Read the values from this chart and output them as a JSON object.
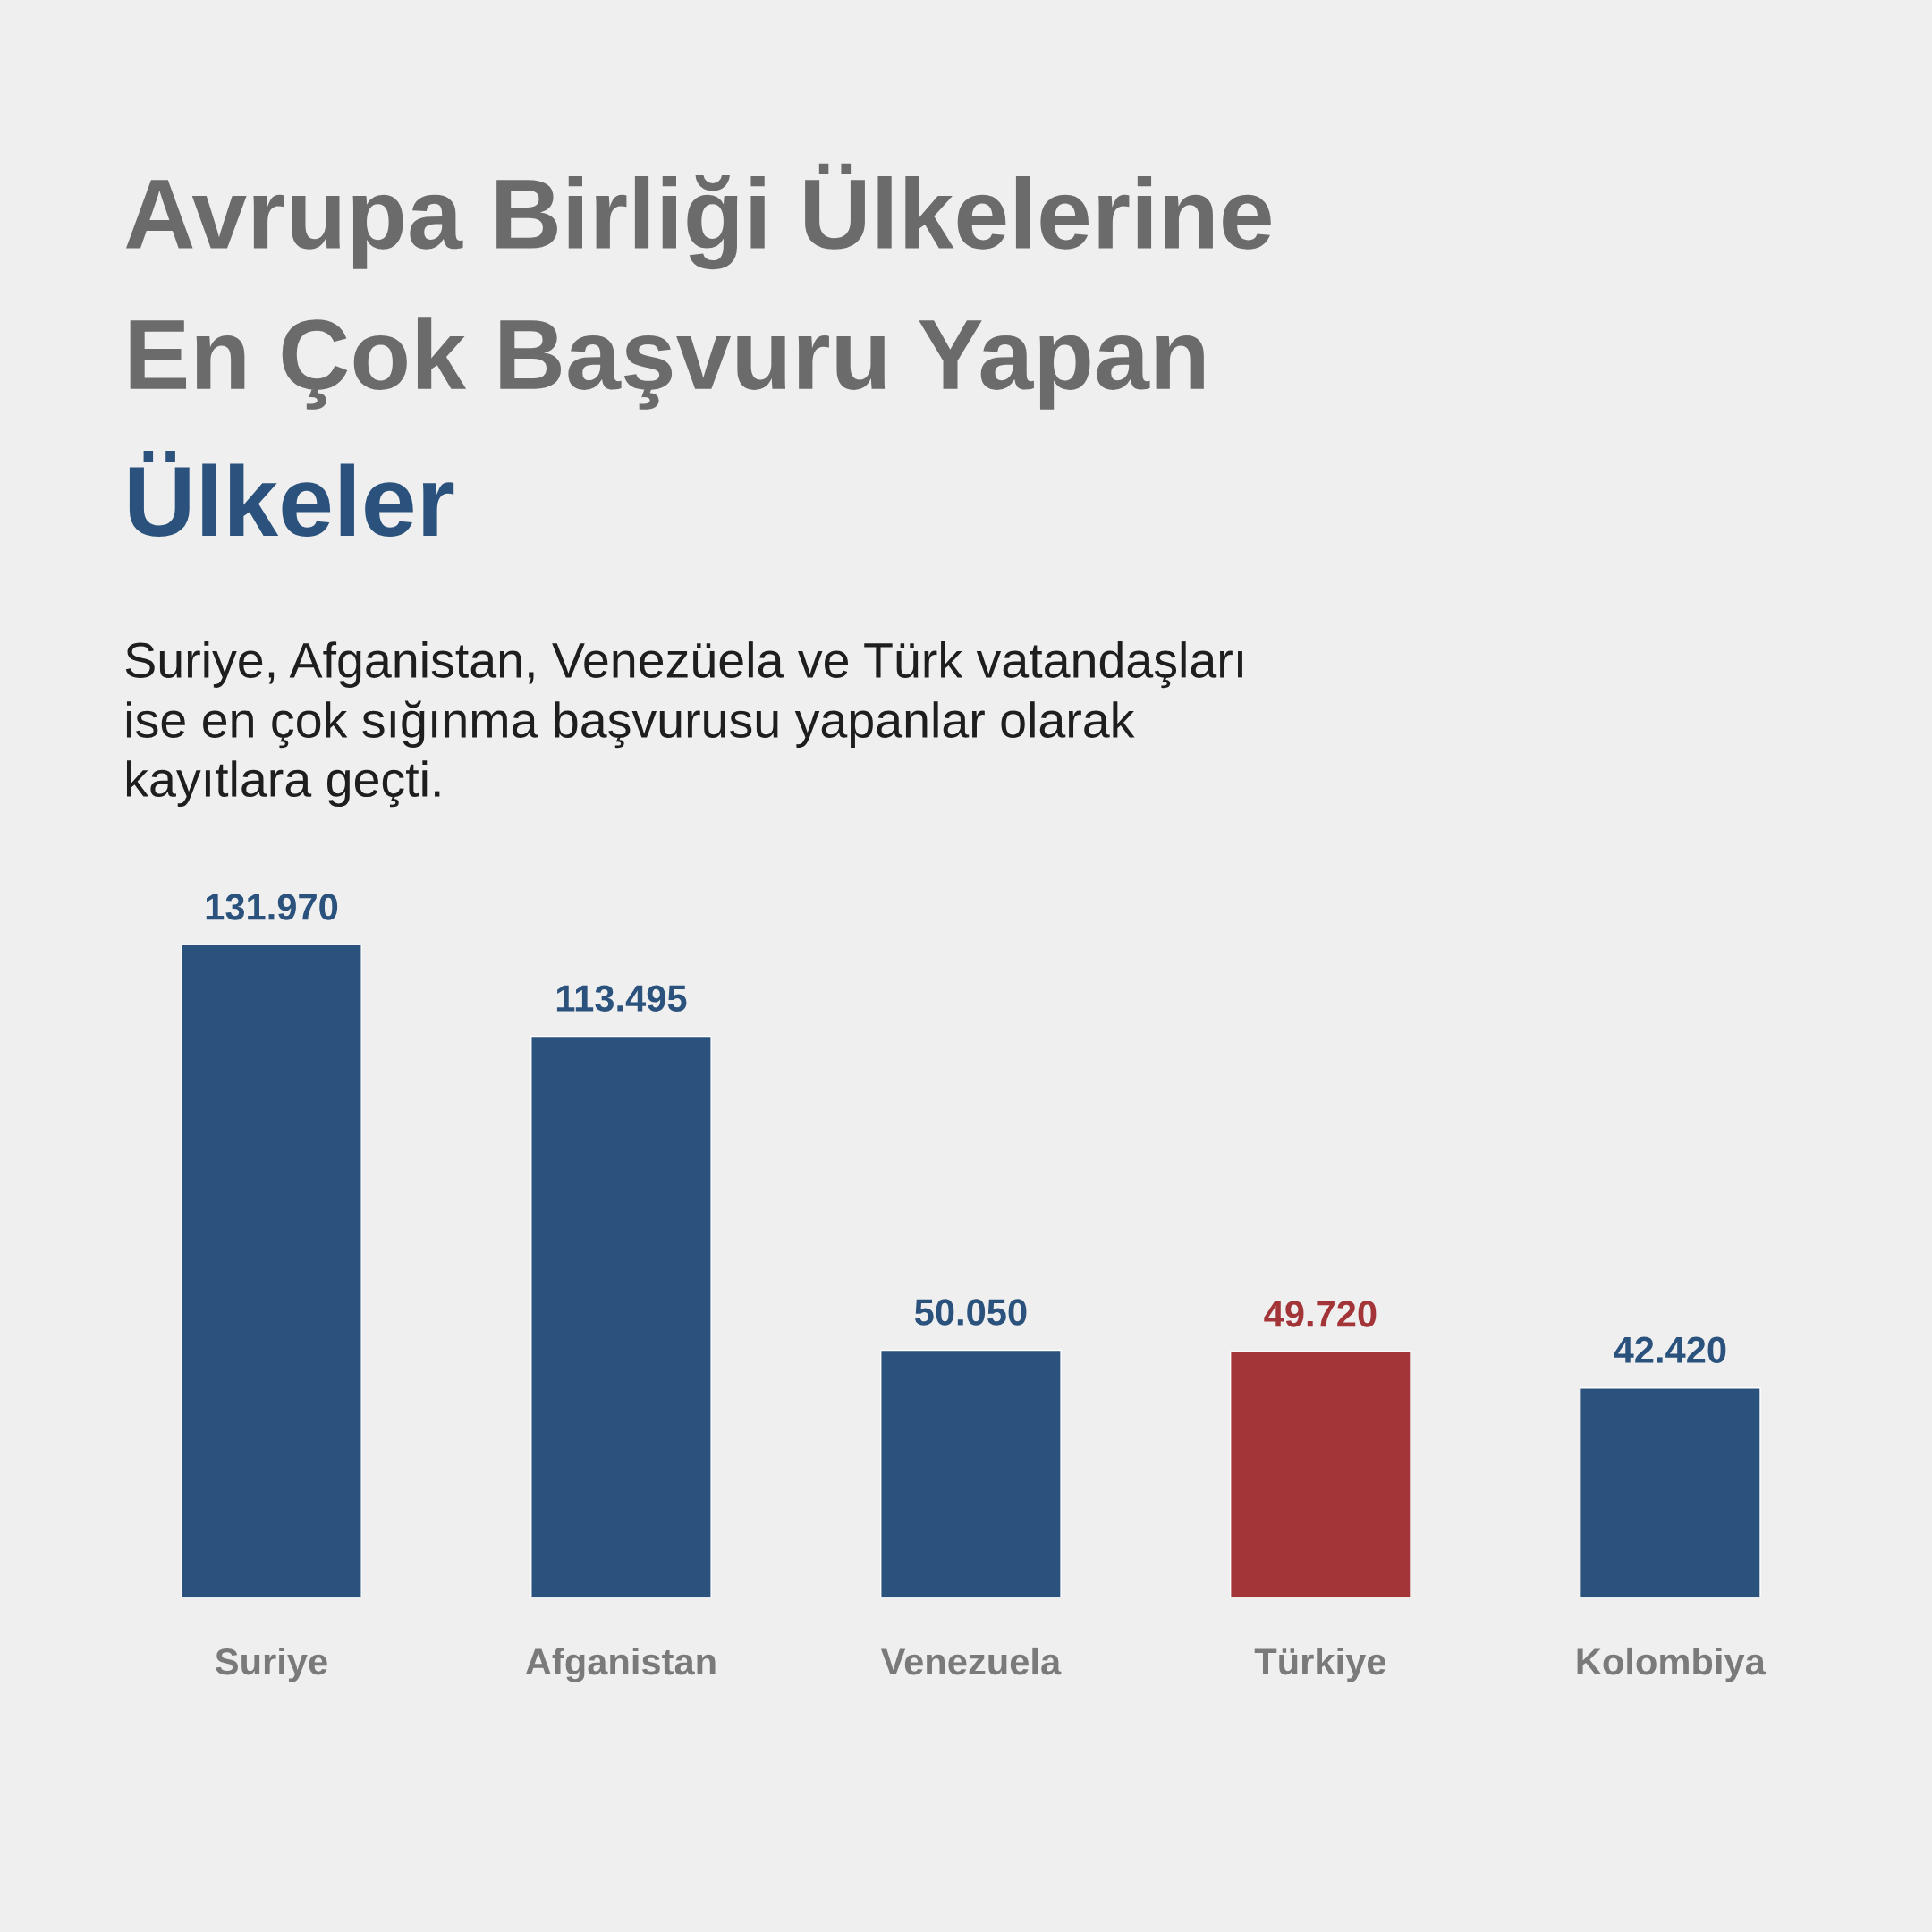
{
  "chart_data": {
    "type": "bar",
    "title": "Avrupa Birliği Ülkelerine\nEn Çok Başvuru Yapan\nÜlkeler",
    "subtitle": "Suriye, Afganistan, Venezüela ve Türk vatandaşları\nise en çok sığınma başvurusu yapanlar olarak\nkayıtlara geçti.",
    "categories": [
      "Suriye",
      "Afganistan",
      "Venezuela",
      "Türkiye",
      "Kolombiya"
    ],
    "values": [
      131970,
      113495,
      50050,
      49720,
      42420
    ],
    "colors": [
      "#2a527c",
      "#2a527c",
      "#2a527c",
      "#a33538",
      "#2a527c"
    ],
    "value_labels": [
      "131.970",
      "113.495",
      "50.050",
      "49.720",
      "42.420"
    ],
    "grid": false
  }
}
